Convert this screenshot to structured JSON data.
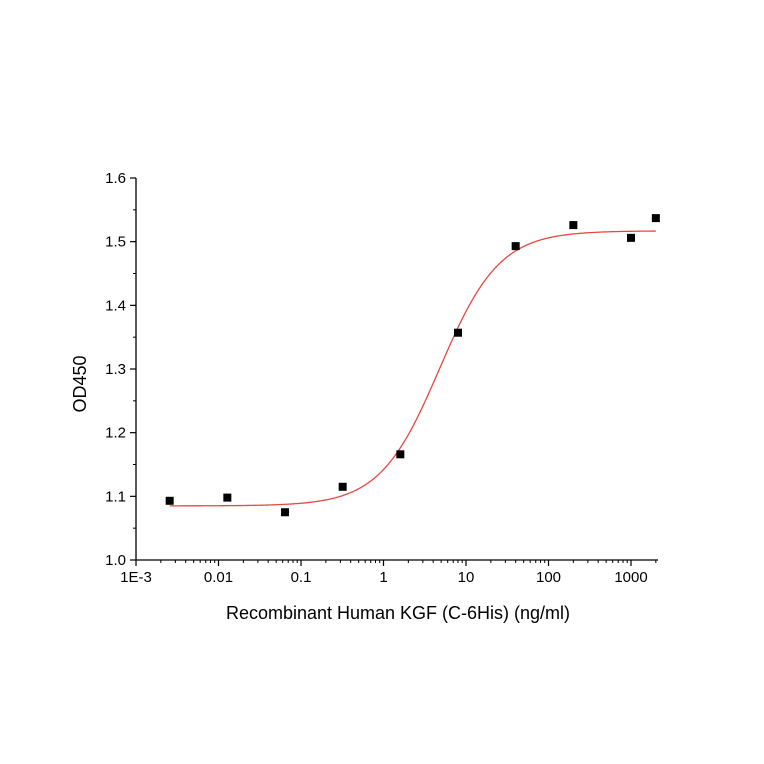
{
  "chart_data": {
    "type": "scatter",
    "xlabel": "Recombinant Human KGF (C-6His) (ng/ml)",
    "ylabel": "OD450",
    "x_scale": "log",
    "xlim": [
      0.001,
      2500
    ],
    "ylim": [
      1.0,
      1.6
    ],
    "x_ticks": [
      {
        "value": 0.001,
        "label": "1E-3"
      },
      {
        "value": 0.01,
        "label": "0.01"
      },
      {
        "value": 0.1,
        "label": "0.1"
      },
      {
        "value": 1,
        "label": "1"
      },
      {
        "value": 10,
        "label": "10"
      },
      {
        "value": 100,
        "label": "100"
      },
      {
        "value": 1000,
        "label": "1000"
      }
    ],
    "y_ticks": [
      {
        "value": 1.0,
        "label": "1.0"
      },
      {
        "value": 1.1,
        "label": "1.1"
      },
      {
        "value": 1.2,
        "label": "1.2"
      },
      {
        "value": 1.3,
        "label": "1.3"
      },
      {
        "value": 1.4,
        "label": "1.4"
      },
      {
        "value": 1.5,
        "label": "1.5"
      },
      {
        "value": 1.6,
        "label": "1.6"
      }
    ],
    "grid": false,
    "series": [
      {
        "marker": "square",
        "color": "#000000",
        "x": [
          0.00256,
          0.0128,
          0.064,
          0.32,
          1.6,
          8,
          40,
          200,
          1000,
          2000
        ],
        "y": [
          1.093,
          1.098,
          1.075,
          1.115,
          1.166,
          1.357,
          1.493,
          1.526,
          1.506,
          1.537
        ]
      }
    ],
    "fit_curve": {
      "color": "#e8473f",
      "model": "4PL",
      "bottom": 1.085,
      "top": 1.517,
      "ec50": 4.8,
      "hill": 1.2,
      "x_range": [
        0.00256,
        2000
      ]
    }
  }
}
